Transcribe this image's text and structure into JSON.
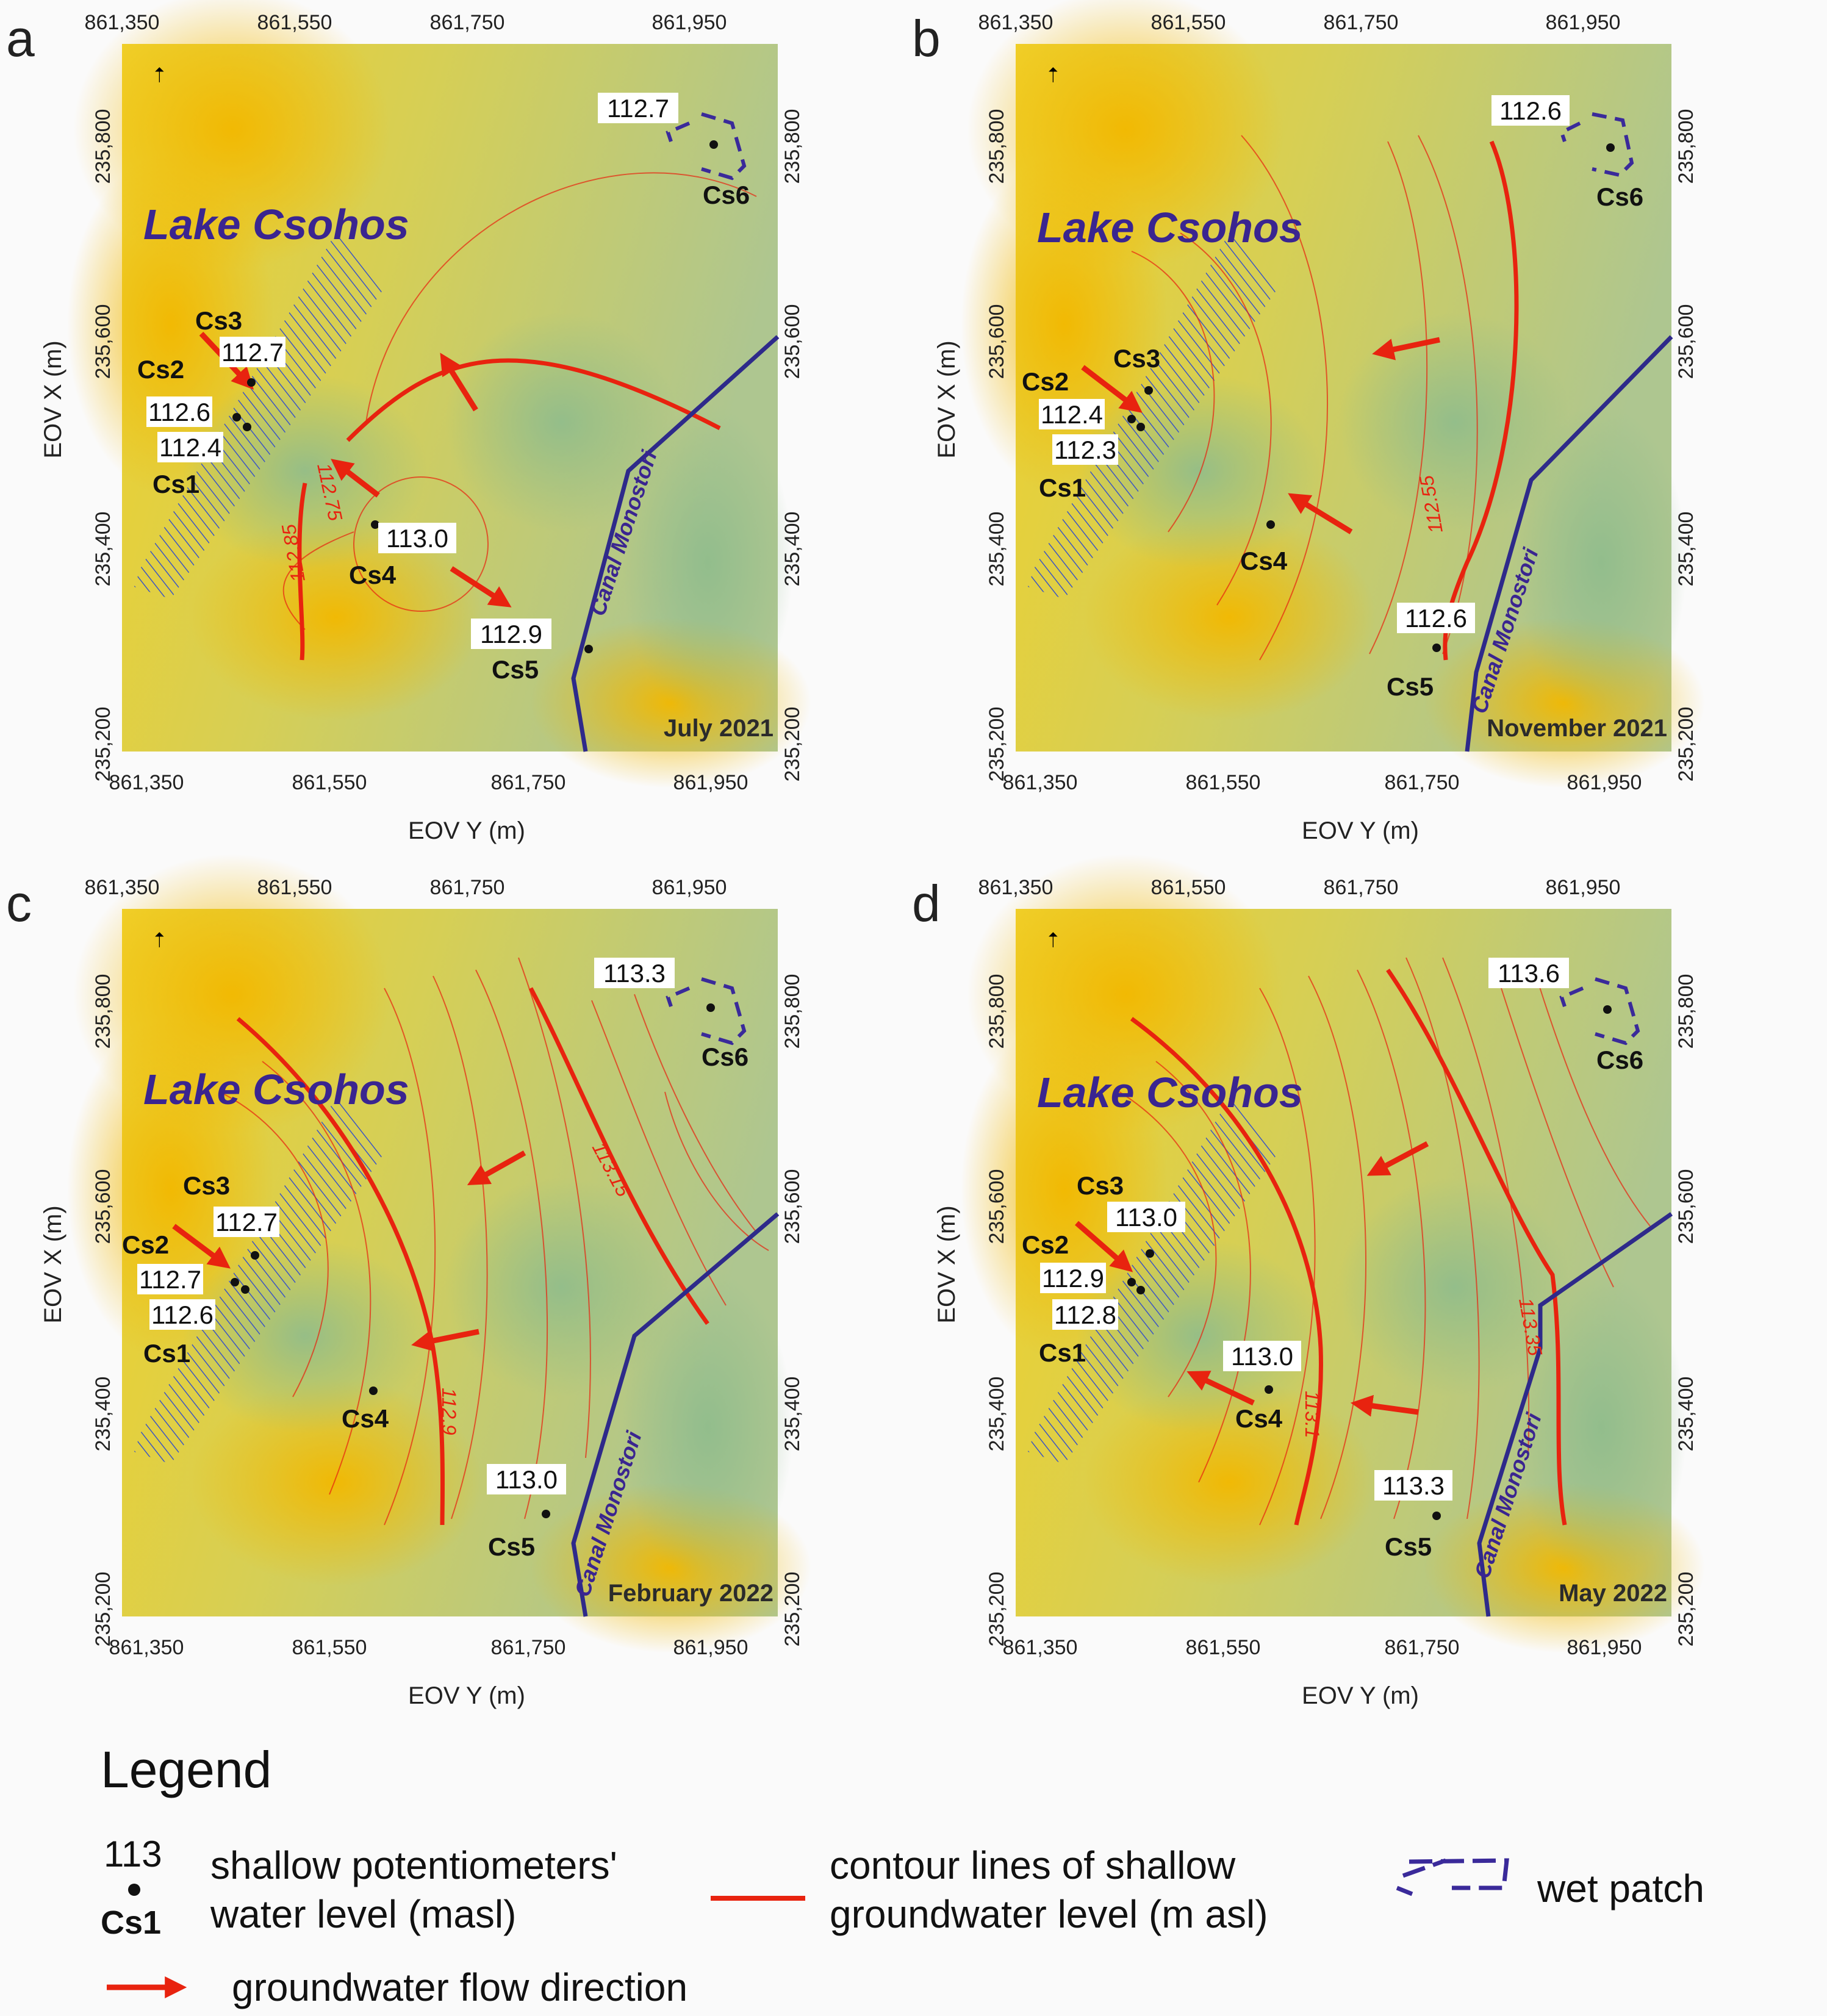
{
  "colors": {
    "contour": "#e8230f",
    "flow_arrow": "#e8230f",
    "canal": "#2e2a8a",
    "lake_hatch": "#3b55c4",
    "wet_patch": "#3a2a9a",
    "background_high": "#f2c21a",
    "background_low": "#a9c79a"
  },
  "axes": {
    "x_label": "EOV Y (m)",
    "y_label": "EOV X (m)",
    "x_ticks": [
      "861,350",
      "861,550",
      "861,750",
      "861,950"
    ],
    "y_ticks": [
      "235,800",
      "235,600",
      "235,400",
      "235,200"
    ],
    "north_symbol": "N"
  },
  "map_labels": {
    "lake": "Lake Csohos",
    "canal": "Canal Monostori"
  },
  "panels": [
    {
      "letter": "a",
      "date": "July 2021",
      "wells": [
        {
          "id": "Cs1",
          "level": "112.4"
        },
        {
          "id": "Cs2",
          "level": "112.6"
        },
        {
          "id": "Cs3",
          "level": "112.7"
        },
        {
          "id": "Cs4",
          "level": "113.0"
        },
        {
          "id": "Cs5",
          "level": "112.9"
        },
        {
          "id": "Cs6",
          "level": "112.7"
        }
      ],
      "contour_labels": [
        "112.75",
        "112.85"
      ]
    },
    {
      "letter": "b",
      "date": "November 2021",
      "wells": [
        {
          "id": "Cs1",
          "level": "112.3"
        },
        {
          "id": "Cs2",
          "level": "112.4"
        },
        {
          "id": "Cs3",
          "level": ""
        },
        {
          "id": "Cs4",
          "level": ""
        },
        {
          "id": "Cs5",
          "level": "112.6"
        },
        {
          "id": "Cs6",
          "level": "112.6"
        }
      ],
      "contour_labels": [
        "112.55"
      ]
    },
    {
      "letter": "c",
      "date": "February 2022",
      "wells": [
        {
          "id": "Cs1",
          "level": "112.6"
        },
        {
          "id": "Cs2",
          "level": "112.7"
        },
        {
          "id": "Cs3",
          "level": "112.7"
        },
        {
          "id": "Cs4",
          "level": ""
        },
        {
          "id": "Cs5",
          "level": "113.0"
        },
        {
          "id": "Cs6",
          "level": "113.3"
        }
      ],
      "contour_labels": [
        "113.15",
        "112.9"
      ]
    },
    {
      "letter": "d",
      "date": "May 2022",
      "wells": [
        {
          "id": "Cs1",
          "level": "112.8"
        },
        {
          "id": "Cs2",
          "level": "112.9"
        },
        {
          "id": "Cs3",
          "level": "113.0"
        },
        {
          "id": "Cs4",
          "level": "113.0"
        },
        {
          "id": "Cs5",
          "level": "113.3"
        },
        {
          "id": "Cs6",
          "level": "113.6"
        }
      ],
      "contour_labels": [
        "113.35",
        "113.1"
      ]
    }
  ],
  "legend": {
    "title": "Legend",
    "sample_number": "113",
    "sample_id": "Cs1",
    "potentiometer_line1": "shallow potentiometers'",
    "potentiometer_line2": "water level (masl)",
    "contour_line1": "contour lines of shallow",
    "contour_line2": "groundwater level (m asl)",
    "wet_patch": "wet patch",
    "flow": "groundwater flow direction"
  }
}
